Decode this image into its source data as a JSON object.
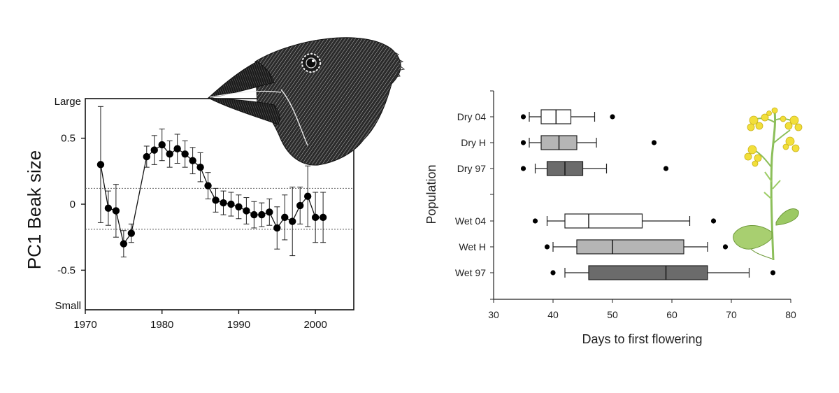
{
  "chart_data": [
    {
      "type": "scatter",
      "ylabel": "PC1 Beak size",
      "ylabel_top": "Large",
      "ylabel_bottom": "Small",
      "xlim": [
        1970,
        2005
      ],
      "ylim": [
        -0.8,
        0.8
      ],
      "x_ticks": [
        1970,
        1980,
        1990,
        2000
      ],
      "y_ticks": [
        {
          "value": 0.5,
          "label": "0.5"
        },
        {
          "value": 0,
          "label": "0"
        },
        {
          "value": -0.5,
          "label": "-0.5"
        }
      ],
      "reference_lines": [
        0.12,
        -0.19
      ],
      "points": [
        {
          "x": 1972,
          "y": 0.3,
          "err": 0.44
        },
        {
          "x": 1973,
          "y": -0.03,
          "err": 0.13
        },
        {
          "x": 1974,
          "y": -0.05,
          "err": 0.2
        },
        {
          "x": 1975,
          "y": -0.3,
          "err": 0.1
        },
        {
          "x": 1976,
          "y": -0.22,
          "err": 0.07
        },
        {
          "x": 1978,
          "y": 0.36,
          "err": 0.08
        },
        {
          "x": 1979,
          "y": 0.41,
          "err": 0.11
        },
        {
          "x": 1980,
          "y": 0.45,
          "err": 0.12
        },
        {
          "x": 1981,
          "y": 0.38,
          "err": 0.1
        },
        {
          "x": 1982,
          "y": 0.42,
          "err": 0.11
        },
        {
          "x": 1983,
          "y": 0.38,
          "err": 0.1
        },
        {
          "x": 1984,
          "y": 0.33,
          "err": 0.1
        },
        {
          "x": 1985,
          "y": 0.28,
          "err": 0.11
        },
        {
          "x": 1986,
          "y": 0.14,
          "err": 0.1
        },
        {
          "x": 1987,
          "y": 0.03,
          "err": 0.09
        },
        {
          "x": 1988,
          "y": 0.01,
          "err": 0.09
        },
        {
          "x": 1989,
          "y": 0.0,
          "err": 0.09
        },
        {
          "x": 1990,
          "y": -0.02,
          "err": 0.09
        },
        {
          "x": 1991,
          "y": -0.05,
          "err": 0.1
        },
        {
          "x": 1992,
          "y": -0.08,
          "err": 0.1
        },
        {
          "x": 1993,
          "y": -0.08,
          "err": 0.09
        },
        {
          "x": 1994,
          "y": -0.06,
          "err": 0.1
        },
        {
          "x": 1995,
          "y": -0.18,
          "err": 0.16
        },
        {
          "x": 1996,
          "y": -0.1,
          "err": 0.17
        },
        {
          "x": 1997,
          "y": -0.13,
          "err": 0.26
        },
        {
          "x": 1998,
          "y": -0.01,
          "err": 0.14
        },
        {
          "x": 1999,
          "y": 0.06,
          "err": 0.23
        },
        {
          "x": 2000,
          "y": -0.1,
          "err": 0.19
        },
        {
          "x": 2001,
          "y": -0.1,
          "err": 0.19
        }
      ]
    },
    {
      "type": "box",
      "xlabel": "Days to first flowering",
      "ylabel": "Population",
      "xlim": [
        30,
        80
      ],
      "x_ticks": [
        30,
        40,
        50,
        60,
        70,
        80
      ],
      "grid": false,
      "groups": [
        {
          "name": "Dry 04",
          "fill": "#ffffff",
          "wlo": 36,
          "q1": 38,
          "median": 40.5,
          "q3": 43,
          "whi": 47,
          "outliers": [
            35,
            50
          ]
        },
        {
          "name": "Dry H",
          "fill": "#b5b5b5",
          "wlo": 36,
          "q1": 38,
          "median": 41,
          "q3": 44,
          "whi": 47.3,
          "outliers": [
            35,
            57
          ]
        },
        {
          "name": "Dry 97",
          "fill": "#6b6b6b",
          "wlo": 37,
          "q1": 39,
          "median": 42,
          "q3": 45,
          "whi": 49,
          "outliers": [
            35,
            59
          ]
        },
        {
          "name": "Wet 04",
          "fill": "#ffffff",
          "wlo": 39,
          "q1": 42,
          "median": 46,
          "q3": 55,
          "whi": 63,
          "outliers": [
            37,
            67
          ]
        },
        {
          "name": "Wet H",
          "fill": "#b5b5b5",
          "wlo": 40,
          "q1": 44,
          "median": 50,
          "q3": 62,
          "whi": 66,
          "outliers": [
            39,
            69
          ]
        },
        {
          "name": "Wet 97",
          "fill": "#6b6b6b",
          "wlo": 42,
          "q1": 46,
          "median": 59,
          "q3": 66,
          "whi": 73,
          "outliers": [
            40,
            77
          ]
        }
      ]
    }
  ]
}
